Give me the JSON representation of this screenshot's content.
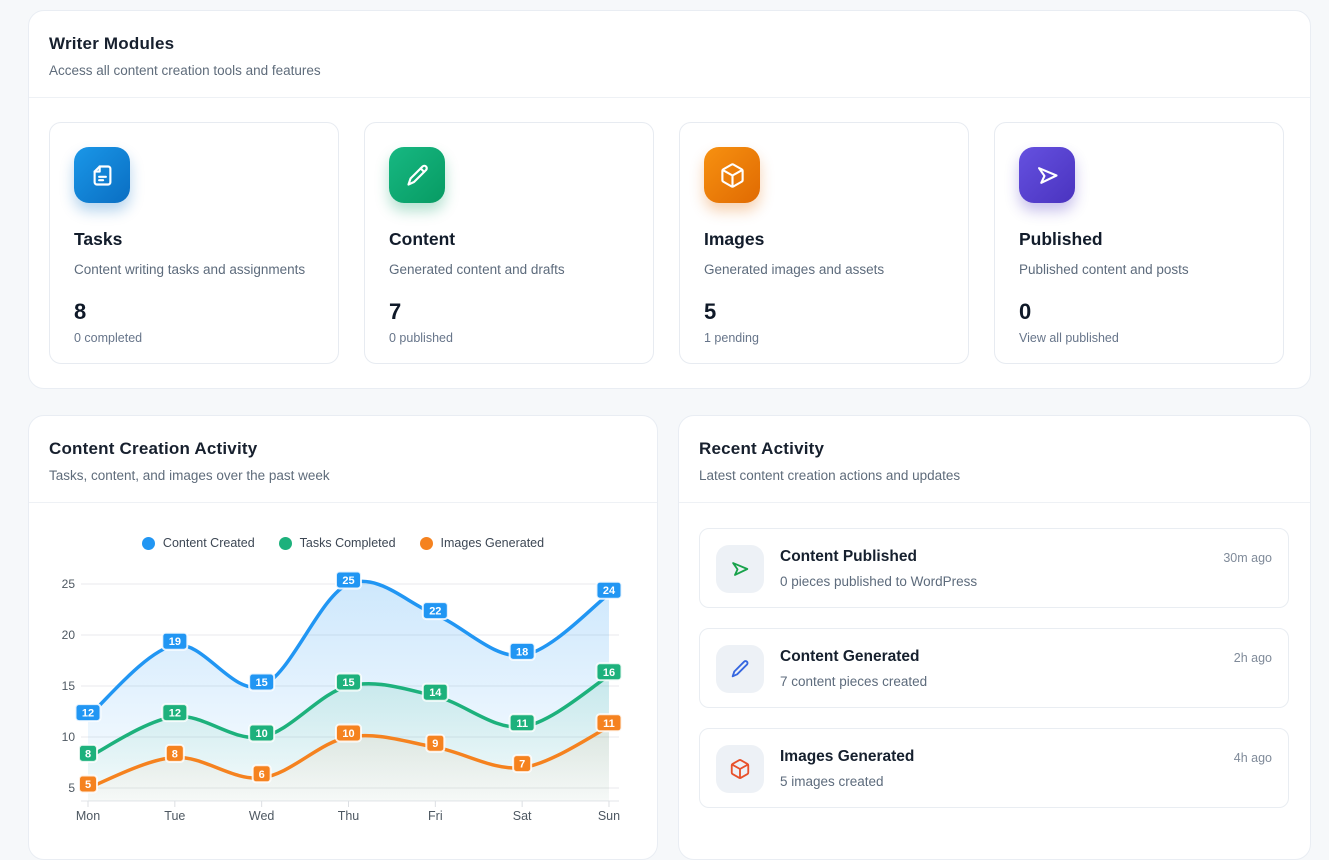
{
  "writer_modules": {
    "title": "Writer Modules",
    "subtitle": "Access all content creation tools and features",
    "cards": [
      {
        "icon": "file-text-icon",
        "icon_colors": [
          "#1a97e8",
          "#0a6ec2"
        ],
        "title": "Tasks",
        "description": "Content writing tasks and assignments",
        "count": "8",
        "sub_label": "0 completed"
      },
      {
        "icon": "pencil-icon",
        "icon_colors": [
          "#17b882",
          "#079b63"
        ],
        "title": "Content",
        "description": "Generated content and drafts",
        "count": "7",
        "sub_label": "0 published"
      },
      {
        "icon": "cube-icon",
        "icon_colors": [
          "#f79110",
          "#e06a02"
        ],
        "title": "Images",
        "description": "Generated images and assets",
        "count": "5",
        "sub_label": "1 pending"
      },
      {
        "icon": "send-icon",
        "icon_colors": [
          "#6551e0",
          "#4a33bf"
        ],
        "title": "Published",
        "description": "Published content and posts",
        "count": "0",
        "sub_label": "View all published"
      }
    ]
  },
  "activity_chart": {
    "title": "Content Creation Activity",
    "subtitle": "Tasks, content, and images over the past week"
  },
  "chart_data": {
    "type": "line",
    "categories": [
      "Mon",
      "Tue",
      "Wed",
      "Thu",
      "Fri",
      "Sat",
      "Sun"
    ],
    "series": [
      {
        "name": "Content Created",
        "color": "#2196f3",
        "values": [
          12,
          19,
          15,
          25,
          22,
          18,
          24
        ]
      },
      {
        "name": "Tasks Completed",
        "color": "#1db17c",
        "values": [
          8,
          12,
          10,
          15,
          14,
          11,
          16
        ]
      },
      {
        "name": "Images Generated",
        "color": "#f5821f",
        "values": [
          5,
          8,
          6,
          10,
          9,
          7,
          11
        ]
      }
    ],
    "yticks": [
      5,
      10,
      15,
      20,
      25
    ],
    "ylim": [
      3.7,
      27.2
    ],
    "grid": true,
    "legend_position": "top",
    "style": "smooth curves with gradient area fill and point value labels in colored boxes"
  },
  "recent_activity": {
    "title": "Recent Activity",
    "subtitle": "Latest content creation actions and updates",
    "items": [
      {
        "icon": "send-icon",
        "icon_color": "#18a24b",
        "title": "Content Published",
        "description": "0 pieces published to WordPress",
        "time": "30m ago"
      },
      {
        "icon": "pencil-icon",
        "icon_color": "#3566e0",
        "title": "Content Generated",
        "description": "7 content pieces created",
        "time": "2h ago"
      },
      {
        "icon": "cube-icon",
        "icon_color": "#e8512b",
        "title": "Images Generated",
        "description": "5 images created",
        "time": "4h ago"
      }
    ]
  }
}
